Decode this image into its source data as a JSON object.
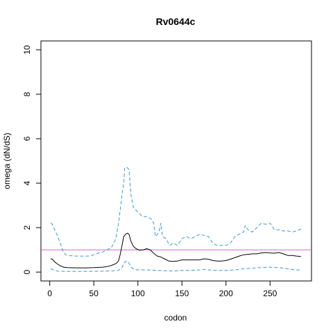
{
  "chart_data": {
    "type": "line",
    "title": "Rv0644c",
    "xlabel": "codon",
    "ylabel": "omega (dN/dS)",
    "xlim": [
      -10,
      297
    ],
    "ylim": [
      -0.4,
      10.4
    ],
    "x_ticks": [
      0,
      50,
      100,
      150,
      200,
      250
    ],
    "y_ticks": [
      0,
      2,
      4,
      6,
      8,
      10
    ],
    "grid": false,
    "reference_line": {
      "y": 1,
      "color": "#cc66cc"
    },
    "series": [
      {
        "role": "estimate",
        "color": "#000000",
        "dash": "solid",
        "points": [
          [
            1,
            0.6
          ],
          [
            3,
            0.58
          ],
          [
            5,
            0.48
          ],
          [
            8,
            0.38
          ],
          [
            12,
            0.28
          ],
          [
            16,
            0.22
          ],
          [
            20,
            0.2
          ],
          [
            30,
            0.19
          ],
          [
            40,
            0.19
          ],
          [
            50,
            0.2
          ],
          [
            60,
            0.22
          ],
          [
            65,
            0.25
          ],
          [
            70,
            0.3
          ],
          [
            75,
            0.38
          ],
          [
            78,
            0.5
          ],
          [
            80,
            0.8
          ],
          [
            82,
            1.2
          ],
          [
            84,
            1.6
          ],
          [
            86,
            1.7
          ],
          [
            88,
            1.75
          ],
          [
            90,
            1.7
          ],
          [
            92,
            1.4
          ],
          [
            95,
            1.15
          ],
          [
            98,
            1.05
          ],
          [
            102,
            0.98
          ],
          [
            106,
            1.0
          ],
          [
            110,
            1.05
          ],
          [
            114,
            1.0
          ],
          [
            118,
            0.85
          ],
          [
            122,
            0.72
          ],
          [
            126,
            0.68
          ],
          [
            130,
            0.6
          ],
          [
            135,
            0.5
          ],
          [
            140,
            0.48
          ],
          [
            145,
            0.5
          ],
          [
            150,
            0.55
          ],
          [
            155,
            0.55
          ],
          [
            160,
            0.55
          ],
          [
            170,
            0.55
          ],
          [
            175,
            0.6
          ],
          [
            180,
            0.58
          ],
          [
            185,
            0.52
          ],
          [
            190,
            0.5
          ],
          [
            195,
            0.5
          ],
          [
            200,
            0.52
          ],
          [
            205,
            0.58
          ],
          [
            210,
            0.65
          ],
          [
            215,
            0.72
          ],
          [
            220,
            0.78
          ],
          [
            225,
            0.8
          ],
          [
            230,
            0.82
          ],
          [
            235,
            0.82
          ],
          [
            240,
            0.86
          ],
          [
            245,
            0.88
          ],
          [
            250,
            0.86
          ],
          [
            255,
            0.85
          ],
          [
            260,
            0.88
          ],
          [
            265,
            0.82
          ],
          [
            270,
            0.75
          ],
          [
            275,
            0.75
          ],
          [
            280,
            0.72
          ],
          [
            285,
            0.7
          ]
        ]
      },
      {
        "role": "upper-bound",
        "color": "#3399dd",
        "dash": "dashed",
        "points": [
          [
            1,
            2.2
          ],
          [
            3,
            2.15
          ],
          [
            5,
            1.95
          ],
          [
            8,
            1.7
          ],
          [
            12,
            1.3
          ],
          [
            15,
            0.95
          ],
          [
            18,
            0.78
          ],
          [
            22,
            0.74
          ],
          [
            30,
            0.72
          ],
          [
            40,
            0.72
          ],
          [
            45,
            0.72
          ],
          [
            50,
            0.78
          ],
          [
            55,
            0.85
          ],
          [
            60,
            0.9
          ],
          [
            65,
            1.0
          ],
          [
            70,
            1.1
          ],
          [
            75,
            1.5
          ],
          [
            78,
            2.2
          ],
          [
            80,
            2.8
          ],
          [
            82,
            3.5
          ],
          [
            84,
            4.0
          ],
          [
            85,
            4.7
          ],
          [
            88,
            4.7
          ],
          [
            90,
            4.6
          ],
          [
            92,
            3.5
          ],
          [
            95,
            2.9
          ],
          [
            100,
            2.7
          ],
          [
            105,
            2.5
          ],
          [
            110,
            2.5
          ],
          [
            115,
            2.4
          ],
          [
            118,
            2.2
          ],
          [
            120,
            1.6
          ],
          [
            122,
            1.7
          ],
          [
            124,
            1.8
          ],
          [
            126,
            2.2
          ],
          [
            128,
            1.6
          ],
          [
            132,
            1.5
          ],
          [
            136,
            1.2
          ],
          [
            140,
            1.3
          ],
          [
            145,
            1.2
          ],
          [
            150,
            1.5
          ],
          [
            155,
            1.6
          ],
          [
            160,
            1.5
          ],
          [
            165,
            1.6
          ],
          [
            170,
            1.7
          ],
          [
            175,
            1.65
          ],
          [
            180,
            1.6
          ],
          [
            185,
            1.3
          ],
          [
            190,
            1.2
          ],
          [
            195,
            1.2
          ],
          [
            200,
            1.2
          ],
          [
            205,
            1.3
          ],
          [
            210,
            1.6
          ],
          [
            215,
            1.7
          ],
          [
            220,
            1.8
          ],
          [
            222,
            2.1
          ],
          [
            225,
            1.9
          ],
          [
            230,
            1.8
          ],
          [
            235,
            2.0
          ],
          [
            240,
            2.2
          ],
          [
            245,
            2.15
          ],
          [
            250,
            2.2
          ],
          [
            255,
            1.9
          ],
          [
            260,
            1.9
          ],
          [
            265,
            1.85
          ],
          [
            270,
            1.85
          ],
          [
            275,
            1.8
          ],
          [
            280,
            1.85
          ],
          [
            286,
            1.95
          ]
        ]
      },
      {
        "role": "lower-bound",
        "color": "#3399dd",
        "dash": "dashed",
        "points": [
          [
            1,
            0.15
          ],
          [
            3,
            0.12
          ],
          [
            6,
            0.07
          ],
          [
            10,
            0.04
          ],
          [
            20,
            0.03
          ],
          [
            40,
            0.03
          ],
          [
            60,
            0.04
          ],
          [
            70,
            0.05
          ],
          [
            78,
            0.08
          ],
          [
            82,
            0.2
          ],
          [
            85,
            0.45
          ],
          [
            88,
            0.5
          ],
          [
            90,
            0.4
          ],
          [
            93,
            0.2
          ],
          [
            96,
            0.12
          ],
          [
            100,
            0.1
          ],
          [
            110,
            0.1
          ],
          [
            120,
            0.08
          ],
          [
            130,
            0.06
          ],
          [
            140,
            0.05
          ],
          [
            150,
            0.07
          ],
          [
            160,
            0.08
          ],
          [
            170,
            0.1
          ],
          [
            175,
            0.12
          ],
          [
            180,
            0.1
          ],
          [
            190,
            0.07
          ],
          [
            200,
            0.07
          ],
          [
            210,
            0.1
          ],
          [
            220,
            0.15
          ],
          [
            230,
            0.18
          ],
          [
            240,
            0.2
          ],
          [
            250,
            0.22
          ],
          [
            260,
            0.2
          ],
          [
            270,
            0.15
          ],
          [
            280,
            0.1
          ],
          [
            286,
            0.08
          ]
        ]
      }
    ]
  }
}
